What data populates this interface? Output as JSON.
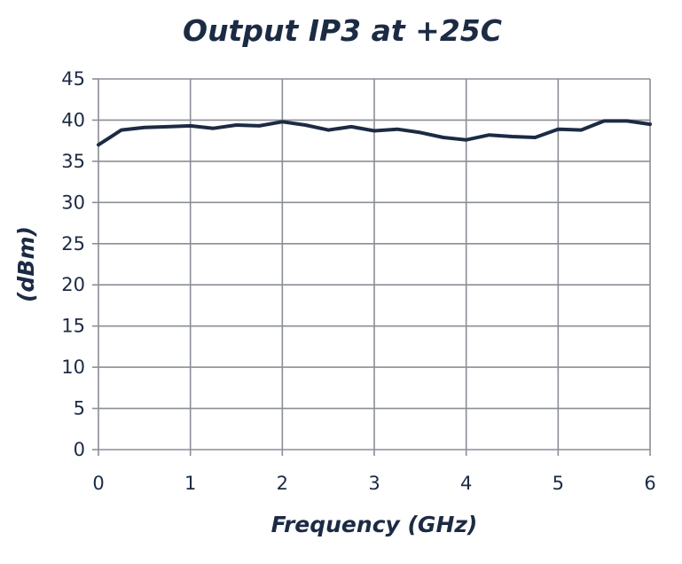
{
  "chart_data": {
    "type": "line",
    "title": "Output IP3 at +25C",
    "xlabel": "Frequency (GHz)",
    "ylabel": "(dBm)",
    "xlim": [
      0,
      6
    ],
    "ylim": [
      0,
      45
    ],
    "x_ticks": [
      "0",
      "1",
      "2",
      "3",
      "4",
      "5",
      "6"
    ],
    "y_ticks": [
      "0",
      "5",
      "10",
      "15",
      "20",
      "25",
      "30",
      "35",
      "40",
      "45"
    ],
    "grid": true,
    "legend": "none",
    "line_color": "#1c2b44",
    "series": [
      {
        "x": [
          0,
          0.25,
          0.5,
          0.75,
          1.0,
          1.25,
          1.5,
          1.75,
          2.0,
          2.25,
          2.5,
          2.75,
          3.0,
          3.25,
          3.5,
          3.75,
          4.0,
          4.25,
          4.5,
          4.75,
          5.0,
          5.25,
          5.5,
          5.75,
          6.0
        ],
        "y": [
          37.0,
          38.8,
          39.1,
          39.2,
          39.3,
          39.0,
          39.4,
          39.3,
          39.8,
          39.4,
          38.8,
          39.2,
          38.7,
          38.9,
          38.5,
          37.9,
          37.6,
          38.2,
          38.0,
          37.9,
          38.9,
          38.8,
          39.9,
          39.9,
          39.5
        ]
      }
    ]
  }
}
